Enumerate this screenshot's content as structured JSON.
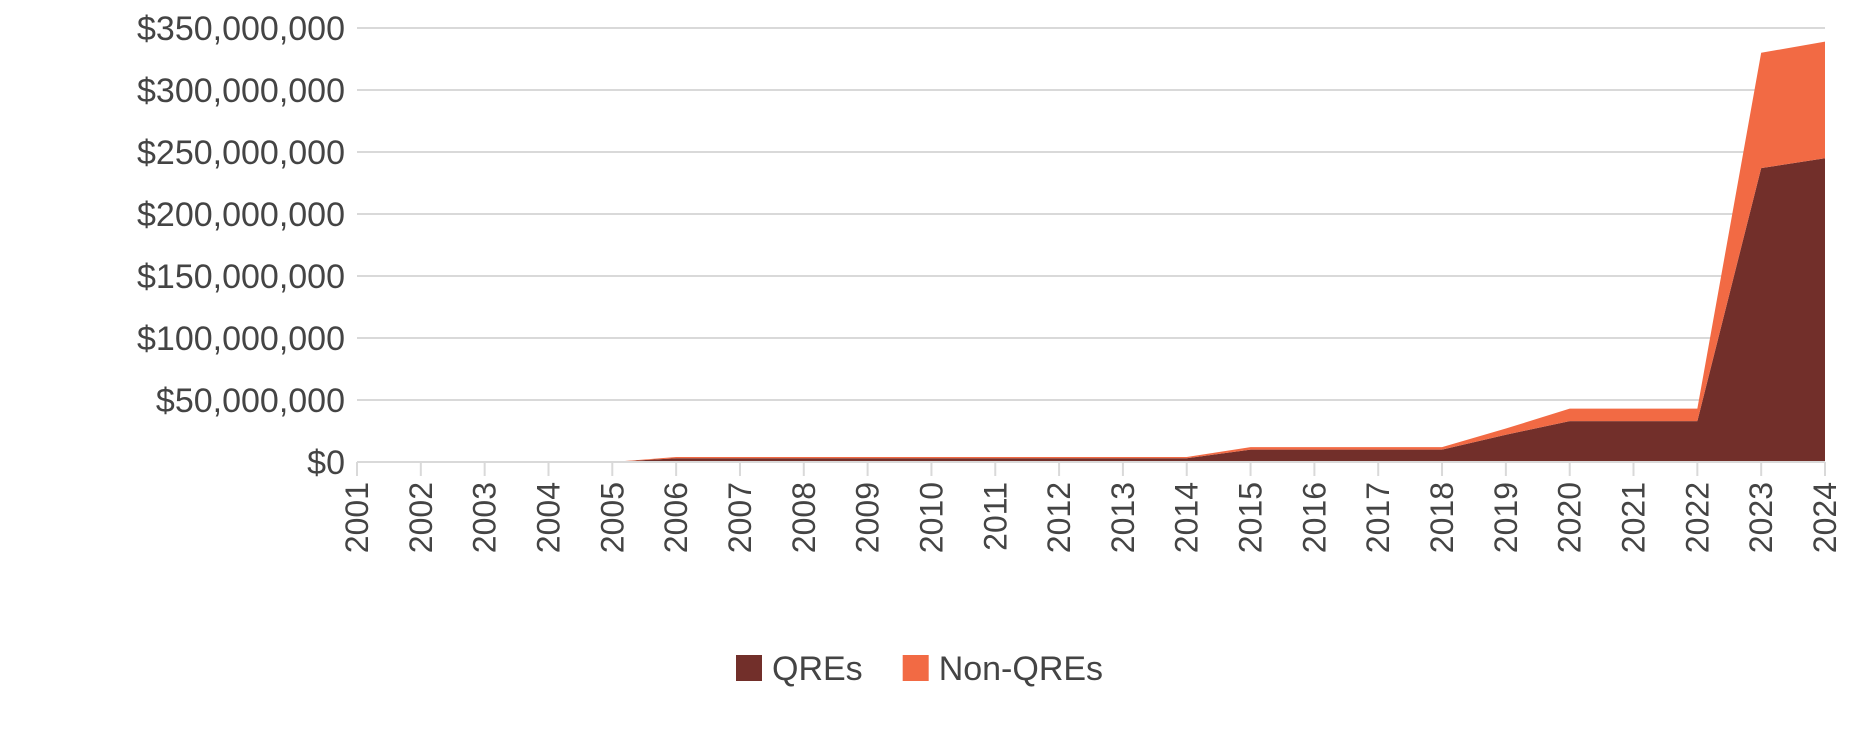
{
  "chart_data": {
    "type": "area",
    "stacked": true,
    "title": "",
    "xlabel": "",
    "ylabel": "",
    "ylim": [
      0,
      350000000
    ],
    "ytick_step": 50000000,
    "y_tick_labels": [
      "$0",
      "$50,000,000",
      "$100,000,000",
      "$150,000,000",
      "$200,000,000",
      "$250,000,000",
      "$300,000,000",
      "$350,000,000"
    ],
    "grid": "horizontal",
    "legend_position": "bottom",
    "categories": [
      "2001",
      "2002",
      "2003",
      "2004",
      "2005",
      "2006",
      "2007",
      "2008",
      "2009",
      "2010",
      "2011",
      "2012",
      "2013",
      "2014",
      "2015",
      "2016",
      "2017",
      "2018",
      "2019",
      "2020",
      "2021",
      "2022",
      "2023",
      "2024"
    ],
    "series": [
      {
        "name": "QREs",
        "color": "#722F2A",
        "values": [
          0,
          0,
          0,
          0,
          0,
          3000000,
          3000000,
          3000000,
          3000000,
          3000000,
          3000000,
          3000000,
          3000000,
          3000000,
          10000000,
          10000000,
          10000000,
          10000000,
          22000000,
          33000000,
          33000000,
          33000000,
          237000000,
          245000000
        ]
      },
      {
        "name": "Non-QREs",
        "color": "#F26A44",
        "values": [
          0,
          0,
          0,
          0,
          0,
          1000000,
          1000000,
          1000000,
          1000000,
          1000000,
          1000000,
          1000000,
          1000000,
          1000000,
          2000000,
          2000000,
          2000000,
          2000000,
          5000000,
          10000000,
          10000000,
          10000000,
          93000000,
          94000000
        ]
      }
    ]
  }
}
